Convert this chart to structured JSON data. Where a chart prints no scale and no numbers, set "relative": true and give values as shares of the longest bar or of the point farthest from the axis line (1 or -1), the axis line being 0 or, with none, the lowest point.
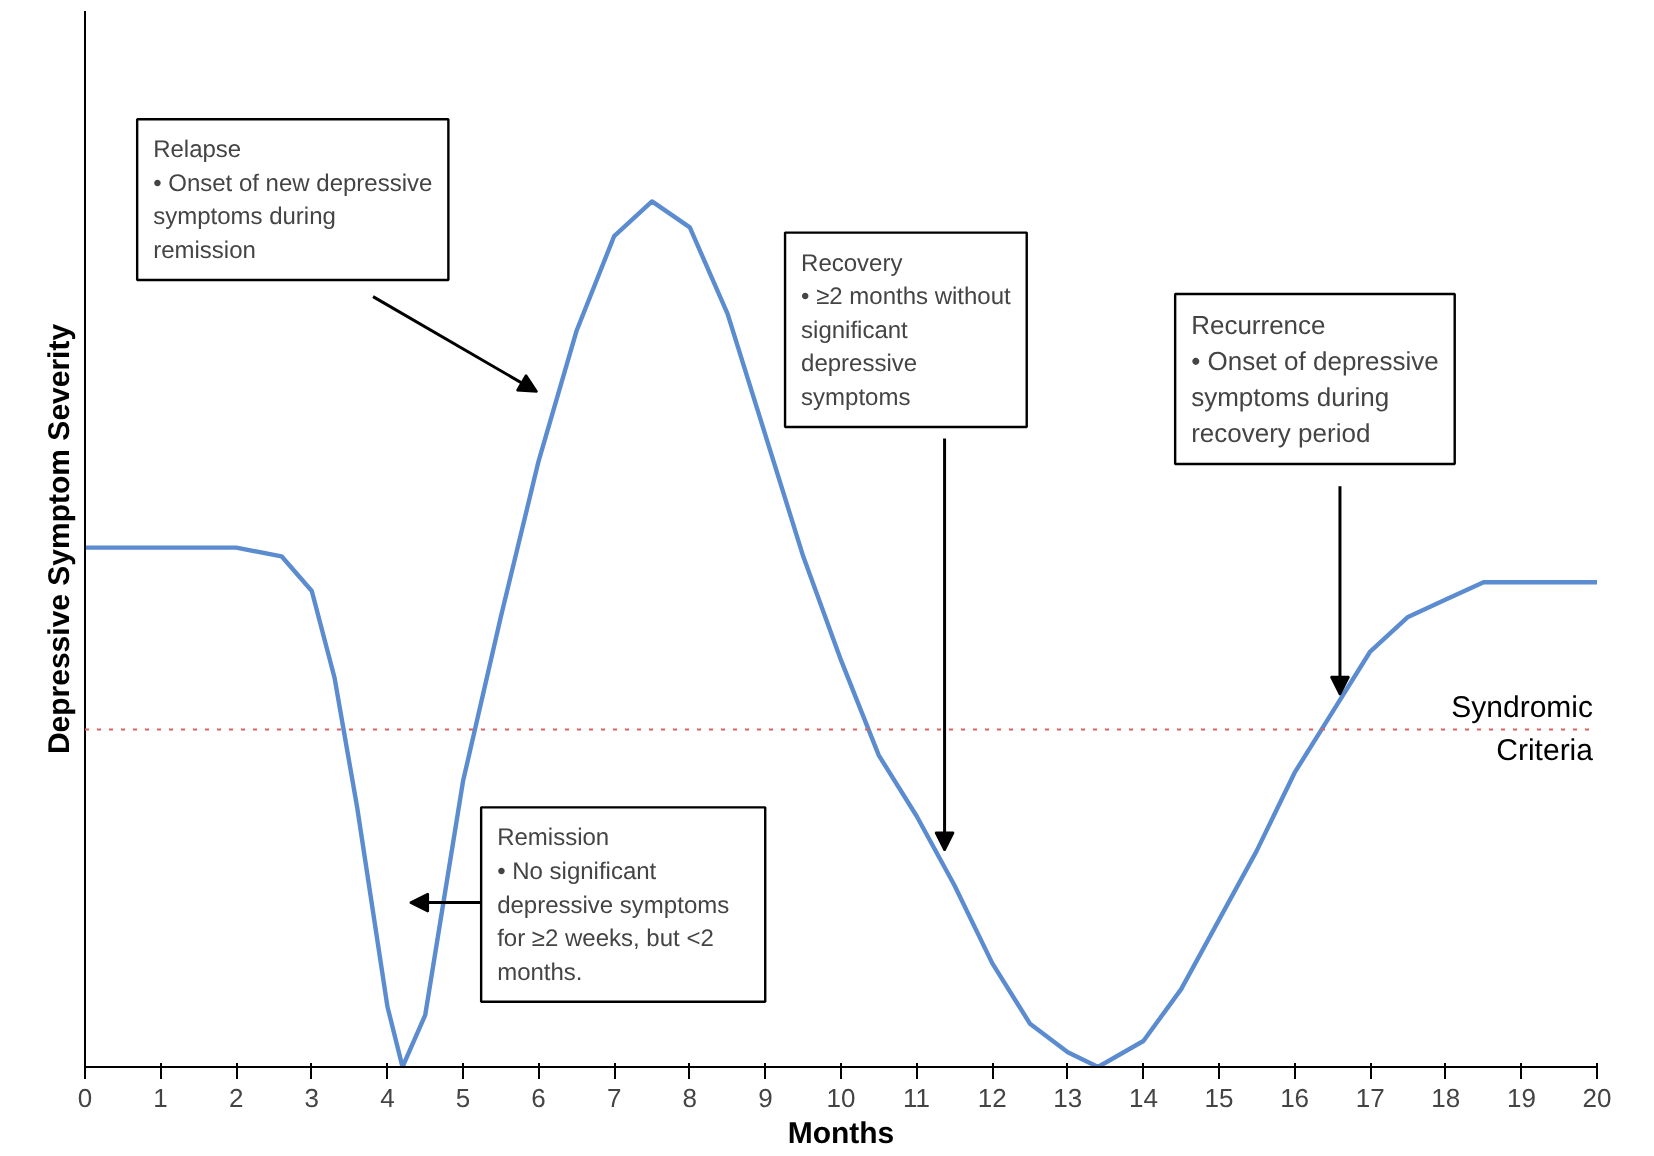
{
  "chart_data": {
    "type": "line",
    "relative": true,
    "xlabel": "Months",
    "ylabel": "Depressive Symptom Severity",
    "xlim": [
      0,
      20
    ],
    "xticks": [
      0,
      1,
      2,
      3,
      4,
      5,
      6,
      7,
      8,
      9,
      10,
      11,
      12,
      13,
      14,
      15,
      16,
      17,
      18,
      19,
      20
    ],
    "grid": false,
    "marker": "none",
    "line_style": "solid",
    "series": [
      {
        "color": "#5b8ccf",
        "x": [
          0,
          2,
          2.6,
          3,
          3.3,
          3.6,
          4,
          4.2,
          4.5,
          5,
          5.5,
          6,
          6.5,
          7,
          7.5,
          8,
          8.5,
          9,
          9.5,
          10,
          10.5,
          11,
          11.5,
          12,
          12.5,
          13,
          13.4,
          14,
          14.5,
          15,
          15.5,
          16,
          16.5,
          17,
          17.5,
          18,
          18.5,
          20
        ],
        "values": [
          0.6,
          0.6,
          0.59,
          0.55,
          0.45,
          0.3,
          0.07,
          0,
          0.06,
          0.33,
          0.52,
          0.7,
          0.85,
          0.96,
          1,
          0.97,
          0.87,
          0.73,
          0.59,
          0.47,
          0.36,
          0.29,
          0.21,
          0.12,
          0.05,
          0.017,
          0,
          0.03,
          0.09,
          0.17,
          0.25,
          0.34,
          0.41,
          0.48,
          0.52,
          0.54,
          0.56,
          0.56
        ]
      }
    ],
    "ref_lines": [
      {
        "axis": "y",
        "value": 0.39,
        "label": "Syndromic\nCriteria",
        "color": "#e06060",
        "line_style": "dotted"
      }
    ],
    "annotations": [
      "Relapse\n• Onset of new depressive\nsymptoms during\nremission",
      "Recovery\n• ≥2 months without\nsignificant\ndepressive\nsymptoms",
      "Recurrence\n• Onset of depressive\nsymptoms during\nrecovery period",
      "Remission\n• No significant\ndepressive symptoms\nfor ≥2 weeks, but <2\nmonths."
    ]
  }
}
